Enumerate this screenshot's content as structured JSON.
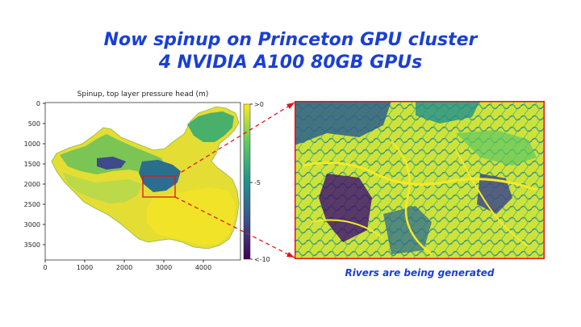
{
  "slide": {
    "title_line1": "Now spinup on Princeton GPU cluster",
    "title_line2": "4 NVIDIA A100 80GB GPUs",
    "caption": "Rivers are being generated"
  },
  "map_plot": {
    "title": "Spinup, top layer pressure head (m)",
    "y_ticks": [
      "0",
      "500",
      "1000",
      "1500",
      "2000",
      "2500",
      "3000",
      "3500"
    ],
    "x_ticks": [
      "0",
      "1000",
      "2000",
      "3000",
      "4000"
    ],
    "colorbar_ticks": [
      ">0",
      "-5",
      "<-10"
    ],
    "colors": {
      "high": "#f2e51d",
      "mid": "#21918c",
      "low": "#3b0f70"
    }
  },
  "colors": {
    "accent": "#1a3fd6",
    "highlight": "#e0151b"
  }
}
